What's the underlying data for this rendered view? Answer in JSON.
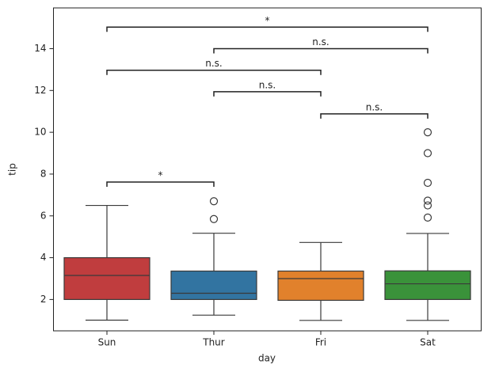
{
  "chart_data": {
    "type": "box",
    "x_label": "day",
    "y_label": "tip",
    "categories": [
      "Sun",
      "Thur",
      "Fri",
      "Sat"
    ],
    "colors": [
      "#c03d3e",
      "#3274a1",
      "#e1812c",
      "#3a923a"
    ],
    "boxes": [
      {
        "whislo": 1.01,
        "q1": 2.0,
        "med": 3.15,
        "q3": 4.0,
        "whishi": 6.5,
        "fliers": []
      },
      {
        "whislo": 1.25,
        "q1": 2.0,
        "med": 2.3,
        "q3": 3.36,
        "whishi": 5.17,
        "fliers": [
          6.7,
          5.85
        ]
      },
      {
        "whislo": 1.0,
        "q1": 1.96,
        "med": 3.0,
        "q3": 3.36,
        "whishi": 4.73,
        "fliers": []
      },
      {
        "whislo": 1.0,
        "q1": 2.0,
        "med": 2.75,
        "q3": 3.37,
        "whishi": 5.16,
        "fliers": [
          10.0,
          9.0,
          7.58,
          6.73,
          6.5,
          5.92
        ]
      }
    ],
    "annotations": [
      {
        "from": "Sun",
        "to": "Thur",
        "y": 7.62,
        "label": "*"
      },
      {
        "from": "Fri",
        "to": "Sat",
        "y": 10.88,
        "label": "n.s."
      },
      {
        "from": "Thur",
        "to": "Fri",
        "y": 11.94,
        "label": "n.s."
      },
      {
        "from": "Sun",
        "to": "Fri",
        "y": 12.97,
        "label": "n.s."
      },
      {
        "from": "Thur",
        "to": "Sat",
        "y": 14.0,
        "label": "n.s."
      },
      {
        "from": "Sun",
        "to": "Sat",
        "y": 15.03,
        "label": "*"
      }
    ],
    "ylim": [
      0.5,
      15.95
    ],
    "yticks": [
      2,
      4,
      6,
      8,
      10,
      12,
      14
    ]
  }
}
